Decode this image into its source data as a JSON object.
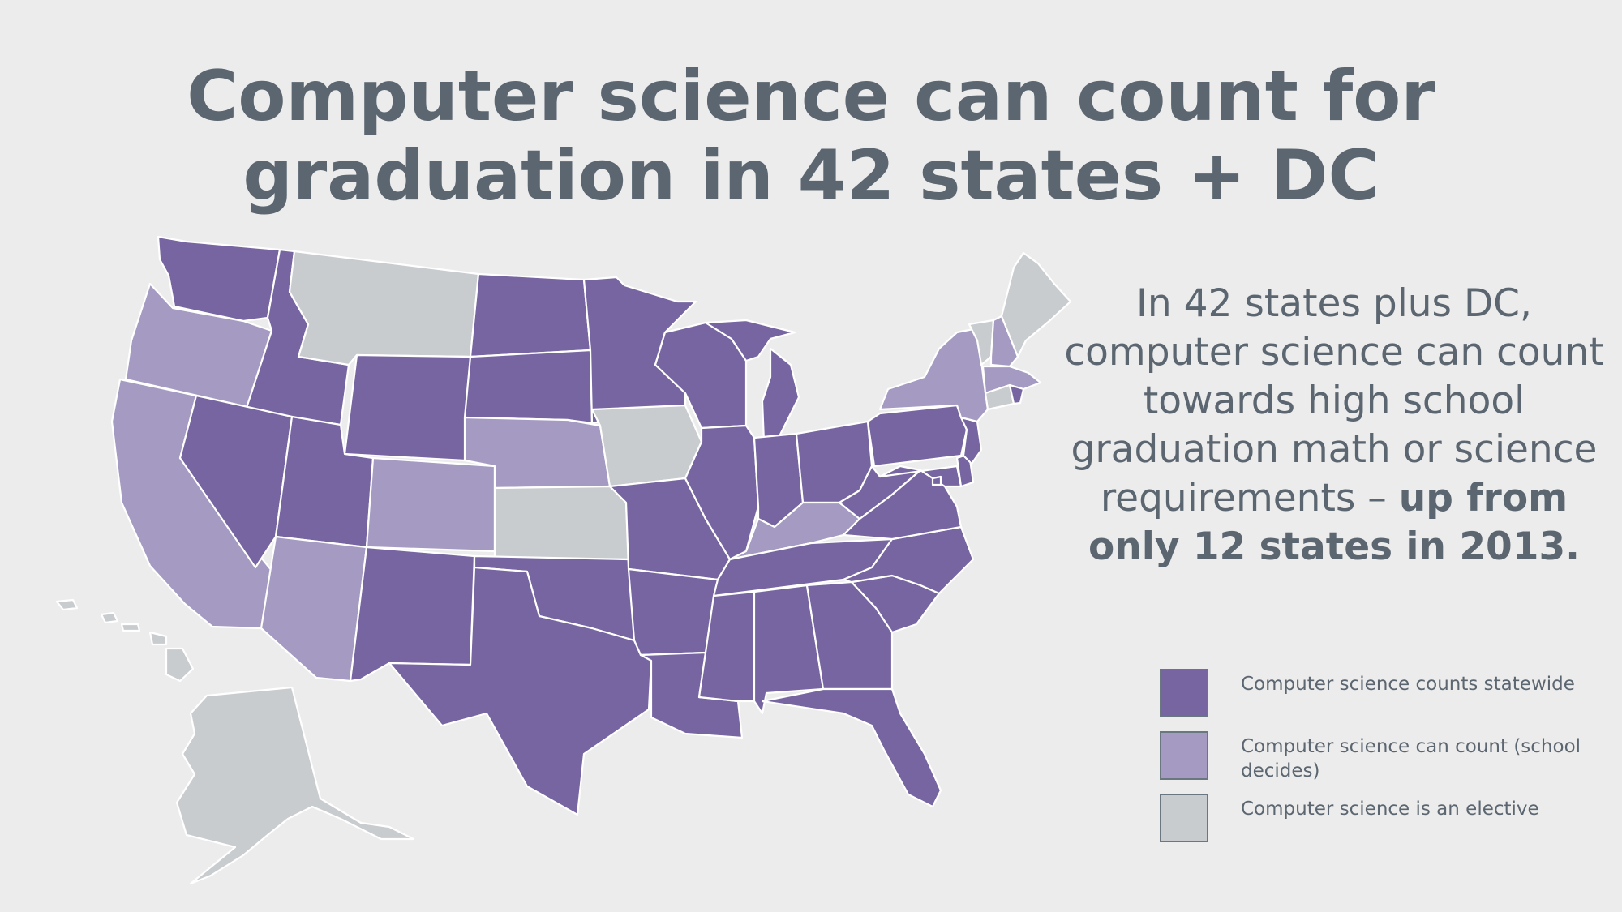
{
  "title": {
    "line1": "Computer science can count for",
    "line2": "graduation in 42 states + DC"
  },
  "description": {
    "text": "In 42 states plus DC, computer science can count towards high school graduation math or science requirements – ",
    "emphasis": "up from only 12 states in 2013."
  },
  "legend": [
    {
      "category": "statewide",
      "label": "Computer science counts statewide",
      "color": "#7665a0"
    },
    {
      "category": "school",
      "label": "Computer science can count (school decides)",
      "color": "#a59ac1"
    },
    {
      "category": "elective",
      "label": "Computer science is an elective",
      "color": "#c8cccf"
    }
  ],
  "states": {
    "statewide": [
      "WA",
      "ID",
      "NV",
      "UT",
      "WY",
      "ND",
      "SD",
      "MN",
      "WI",
      "MI",
      "IL",
      "IN",
      "OH",
      "PA",
      "NJ",
      "DE",
      "MD",
      "DC",
      "RI",
      "WV",
      "VA",
      "NC",
      "SC",
      "GA",
      "FL",
      "AL",
      "MS",
      "TN",
      "AR",
      "LA",
      "MO",
      "OK",
      "TX",
      "NM"
    ],
    "school": [
      "OR",
      "CA",
      "AZ",
      "CO",
      "NE",
      "KY",
      "NY",
      "NH",
      "MA"
    ],
    "elective": [
      "MT",
      "IA",
      "KS",
      "VT",
      "ME",
      "CT",
      "AK",
      "HI"
    ]
  }
}
